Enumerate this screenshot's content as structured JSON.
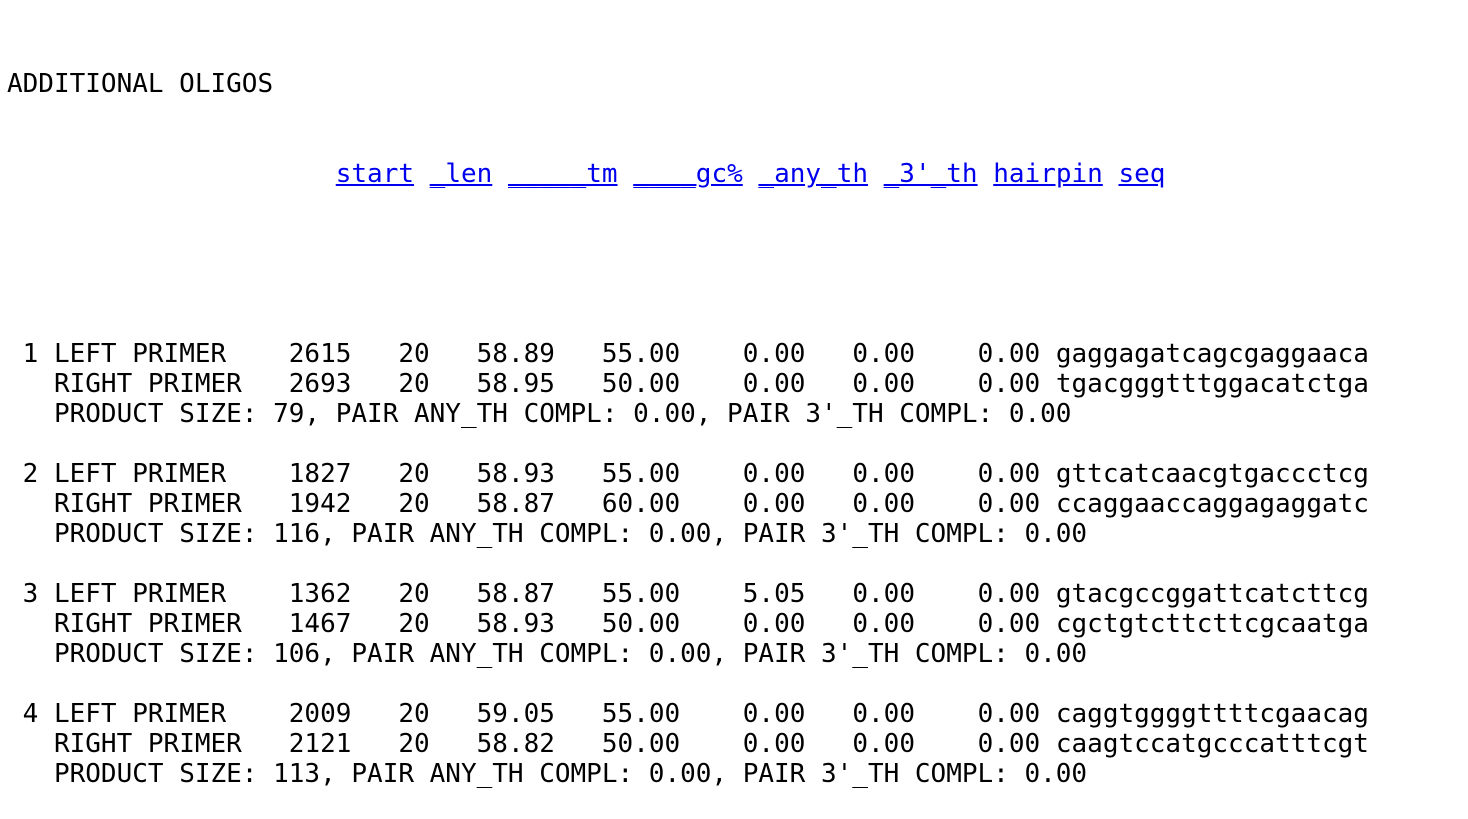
{
  "title": "ADDITIONAL OLIGOS",
  "columns": [
    {
      "label": "start",
      "width": 5,
      "target": "#PRIMER_START_INPUT"
    },
    {
      "label": "len",
      "width": 4,
      "target": "#PRIMER_LEN_INPUT"
    },
    {
      "label": "tm",
      "width": 7,
      "target": "#PRIMER_TM_INPUT"
    },
    {
      "label": "gc%",
      "width": 7,
      "target": "#PRIMER_GC_PERCENT_INPUT"
    },
    {
      "label": "any_th",
      "width": 7,
      "target": "#PRIMER_ANY_TH_INPUT"
    },
    {
      "label": "3'_th",
      "width": 6,
      "target": "#PRIMER_3_TH_INPUT"
    },
    {
      "label": "hairpin",
      "width": 7,
      "target": "#PRIMER_HAIRPIN_INPUT"
    },
    {
      "label": "seq",
      "width": 3,
      "target": "#PRIMER_SEQ_INPUT"
    }
  ],
  "pairs": [
    {
      "index": "1",
      "left": {
        "label": "LEFT PRIMER",
        "start": "2615",
        "len": "20",
        "tm": "58.89",
        "gc": "55.00",
        "any_th": "0.00",
        "three_th": "0.00",
        "hairpin": "0.00",
        "seq": "gaggagatcagcgaggaaca"
      },
      "right": {
        "label": "RIGHT PRIMER",
        "start": "2693",
        "len": "20",
        "tm": "58.95",
        "gc": "50.00",
        "any_th": "0.00",
        "three_th": "0.00",
        "hairpin": "0.00",
        "seq": "tgacgggtttggacatctga"
      },
      "product_line": "PRODUCT SIZE: 79, PAIR ANY_TH COMPL: 0.00, PAIR 3'_TH COMPL: 0.00"
    },
    {
      "index": "2",
      "left": {
        "label": "LEFT PRIMER",
        "start": "1827",
        "len": "20",
        "tm": "58.93",
        "gc": "55.00",
        "any_th": "0.00",
        "three_th": "0.00",
        "hairpin": "0.00",
        "seq": "gttcatcaacgtgaccctcg"
      },
      "right": {
        "label": "RIGHT PRIMER",
        "start": "1942",
        "len": "20",
        "tm": "58.87",
        "gc": "60.00",
        "any_th": "0.00",
        "three_th": "0.00",
        "hairpin": "0.00",
        "seq": "ccaggaaccaggagaggatc"
      },
      "product_line": "PRODUCT SIZE: 116, PAIR ANY_TH COMPL: 0.00, PAIR 3'_TH COMPL: 0.00"
    },
    {
      "index": "3",
      "left": {
        "label": "LEFT PRIMER",
        "start": "1362",
        "len": "20",
        "tm": "58.87",
        "gc": "55.00",
        "any_th": "5.05",
        "three_th": "0.00",
        "hairpin": "0.00",
        "seq": "gtacgccggattcatcttcg"
      },
      "right": {
        "label": "RIGHT PRIMER",
        "start": "1467",
        "len": "20",
        "tm": "58.93",
        "gc": "50.00",
        "any_th": "0.00",
        "three_th": "0.00",
        "hairpin": "0.00",
        "seq": "cgctgtcttcttcgcaatga"
      },
      "product_line": "PRODUCT SIZE: 106, PAIR ANY_TH COMPL: 0.00, PAIR 3'_TH COMPL: 0.00"
    },
    {
      "index": "4",
      "left": {
        "label": "LEFT PRIMER",
        "start": "2009",
        "len": "20",
        "tm": "59.05",
        "gc": "55.00",
        "any_th": "0.00",
        "three_th": "0.00",
        "hairpin": "0.00",
        "seq": "caggtggggttttcgaacag"
      },
      "right": {
        "label": "RIGHT PRIMER",
        "start": "2121",
        "len": "20",
        "tm": "58.82",
        "gc": "50.00",
        "any_th": "0.00",
        "three_th": "0.00",
        "hairpin": "0.00",
        "seq": "caagtccatgcccatttcgt"
      },
      "product_line": "PRODUCT SIZE: 113, PAIR ANY_TH COMPL: 0.00, PAIR 3'_TH COMPL: 0.00"
    }
  ]
}
